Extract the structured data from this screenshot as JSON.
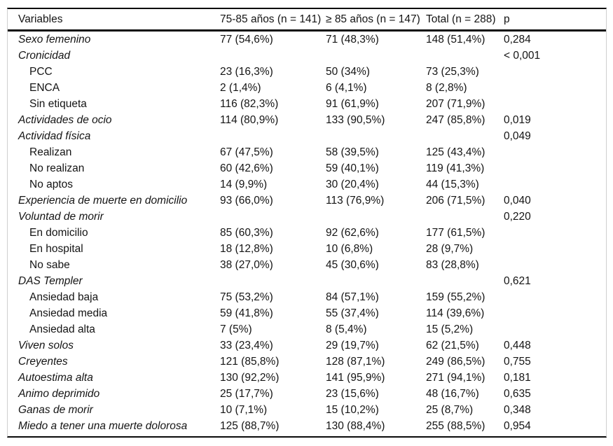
{
  "table": {
    "headers": [
      "Variables",
      "75-85 años (n = 141)",
      "≥ 85 años (n = 147)",
      "Total (n = 288)",
      "p"
    ],
    "rows": [
      {
        "label": "Sexo femenino",
        "style": "main",
        "c1": "77 (54,6%)",
        "c2": "71 (48,3%)",
        "c3": "148 (51,4%)",
        "p": "0,284"
      },
      {
        "label": "Cronicidad",
        "style": "main",
        "c1": "",
        "c2": "",
        "c3": "",
        "p": "< 0,001"
      },
      {
        "label": "PCC",
        "style": "sub",
        "c1": "23 (16,3%)",
        "c2": "50 (34%)",
        "c3": "73 (25,3%)",
        "p": ""
      },
      {
        "label": "ENCA",
        "style": "sub",
        "c1": "2 (1,4%)",
        "c2": "6 (4,1%)",
        "c3": "8 (2,8%)",
        "p": ""
      },
      {
        "label": "Sin etiqueta",
        "style": "sub",
        "c1": "116 (82,3%)",
        "c2": "91 (61,9%)",
        "c3": "207 (71,9%)",
        "p": ""
      },
      {
        "label": "Actividades de ocio",
        "style": "main",
        "c1": "114 (80,9%)",
        "c2": "133 (90,5%)",
        "c3": "247 (85,8%)",
        "p": "0,019"
      },
      {
        "label": "Actividad física",
        "style": "main",
        "c1": "",
        "c2": "",
        "c3": "",
        "p": "0,049"
      },
      {
        "label": "Realizan",
        "style": "sub",
        "c1": "67 (47,5%)",
        "c2": "58 (39,5%)",
        "c3": "125 (43,4%)",
        "p": ""
      },
      {
        "label": "No realizan",
        "style": "sub",
        "c1": "60 (42,6%)",
        "c2": "59 (40,1%)",
        "c3": "119 (41,3%)",
        "p": ""
      },
      {
        "label": "No aptos",
        "style": "sub",
        "c1": "14 (9,9%)",
        "c2": "30 (20,4%)",
        "c3": "44 (15,3%)",
        "p": ""
      },
      {
        "label": "Experiencia de muerte en domicilio",
        "style": "main",
        "c1": "93 (66,0%)",
        "c2": "113 (76,9%)",
        "c3": "206 (71,5%)",
        "p": "0,040"
      },
      {
        "label": "Voluntad de morir",
        "style": "main",
        "c1": "",
        "c2": "",
        "c3": "",
        "p": "0,220"
      },
      {
        "label": "En domicilio",
        "style": "sub",
        "c1": "85 (60,3%)",
        "c2": "92 (62,6%)",
        "c3": "177 (61,5%)",
        "p": ""
      },
      {
        "label": "En hospital",
        "style": "sub",
        "c1": "18 (12,8%)",
        "c2": "10 (6,8%)",
        "c3": "28 (9,7%)",
        "p": ""
      },
      {
        "label": "No sabe",
        "style": "sub",
        "c1": "38 (27,0%)",
        "c2": "45 (30,6%)",
        "c3": "83 (28,8%)",
        "p": ""
      },
      {
        "label": "DAS Templer",
        "style": "main",
        "c1": "",
        "c2": "",
        "c3": "",
        "p": "0,621"
      },
      {
        "label": "Ansiedad baja",
        "style": "sub",
        "c1": "75 (53,2%)",
        "c2": "84 (57,1%)",
        "c3": "159 (55,2%)",
        "p": ""
      },
      {
        "label": "Ansiedad media",
        "style": "sub",
        "c1": "59 (41,8%)",
        "c2": "55 (37,4%)",
        "c3": "114 (39,6%)",
        "p": ""
      },
      {
        "label": "Ansiedad alta",
        "style": "sub",
        "c1": "7 (5%)",
        "c2": "8 (5,4%)",
        "c3": "15 (5,2%)",
        "p": ""
      },
      {
        "label": "Viven solos",
        "style": "main",
        "c1": "33 (23,4%)",
        "c2": "29 (19,7%)",
        "c3": "62 (21,5%)",
        "p": "0,448"
      },
      {
        "label": "Creyentes",
        "style": "main",
        "c1": "121 (85,8%)",
        "c2": "128 (87,1%)",
        "c3": "249 (86,5%)",
        "p": "0,755"
      },
      {
        "label": "Autoestima alta",
        "style": "main",
        "c1": "130 (92,2%)",
        "c2": "141 (95,9%)",
        "c3": "271 (94,1%)",
        "p": "0,181"
      },
      {
        "label": "Ánimo deprimido",
        "style": "main",
        "c1": "25 (17,7%)",
        "c2": "23 (15,6%)",
        "c3": "48 (16,7%)",
        "p": "0,635"
      },
      {
        "label": "Ganas de morir",
        "style": "main",
        "c1": "10 (7,1%)",
        "c2": "15 (10,2%)",
        "c3": "25 (8,7%)",
        "p": "0,348"
      },
      {
        "label": "Miedo a tener una muerte dolorosa",
        "style": "main",
        "c1": "125 (88,7%)",
        "c2": "130 (88,4%)",
        "c3": "255 (88,5%)",
        "p": "0,954"
      }
    ]
  }
}
